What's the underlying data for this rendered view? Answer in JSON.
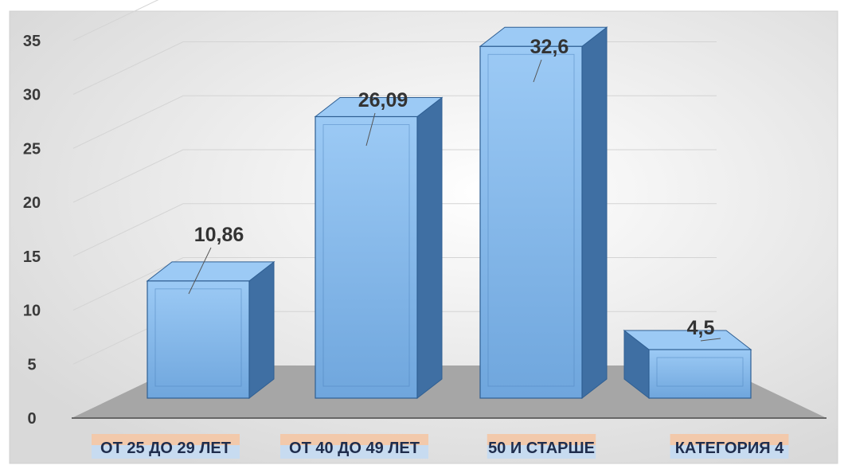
{
  "chart_data": {
    "type": "bar",
    "categories": [
      "ОТ 25 ДО 29 ЛЕТ",
      "ОТ 40 ДО 49 ЛЕТ",
      "50 И СТАРШЕ",
      "КАТЕГОРИЯ  4"
    ],
    "values": [
      10.86,
      26.09,
      32.6,
      4.5
    ],
    "data_labels": [
      "10,86",
      "26,09",
      "32,6",
      "4,5"
    ],
    "y_ticks": [
      "0",
      "5",
      "10",
      "15",
      "20",
      "25",
      "30",
      "35"
    ],
    "ylim": [
      0,
      35
    ],
    "title": "",
    "xlabel": "",
    "ylabel": "",
    "grid": true,
    "legend": "none",
    "style": "3d-column"
  },
  "colors": {
    "bar_front": "#6fa6dd",
    "bar_side": "#3f6fa3",
    "bar_top": "#9ccaf5",
    "floor": "#a6a6a6",
    "category_highlight_top": "#f2c9ab",
    "category_highlight_bottom": "#c7dbf0"
  }
}
